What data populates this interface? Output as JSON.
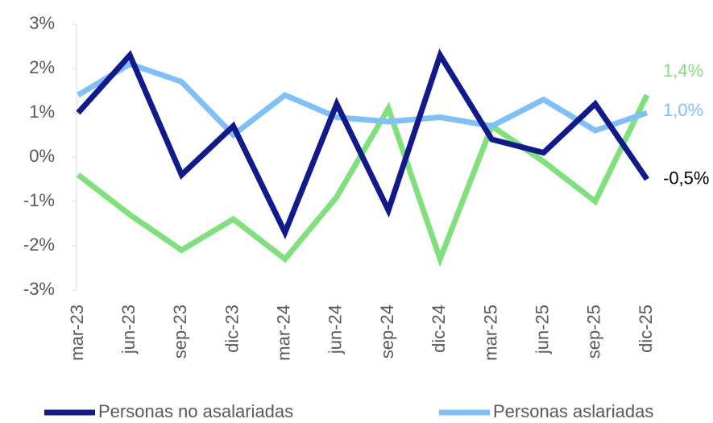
{
  "chart_data": {
    "type": "line",
    "categories": [
      "mar-23",
      "jun-23",
      "sep-23",
      "dic-23",
      "mar-24",
      "jun-24",
      "sep-24",
      "dic-24",
      "mar-25",
      "jun-25",
      "sep-25",
      "dic-25"
    ],
    "series": [
      {
        "name": "Personas no asalariadas",
        "color": "#111a8c",
        "values": [
          1.0,
          2.3,
          -0.4,
          0.7,
          -1.7,
          1.2,
          -1.2,
          2.3,
          0.4,
          0.1,
          1.2,
          -0.5
        ],
        "value_labels": [
          null,
          null,
          null,
          null,
          null,
          null,
          null,
          null,
          null,
          null,
          null,
          "-0,5%"
        ]
      },
      {
        "name": "Personas aslariadas",
        "color": "#80c0fa",
        "values": [
          1.4,
          2.1,
          1.7,
          0.5,
          1.4,
          0.9,
          0.8,
          0.9,
          0.7,
          1.3,
          0.6,
          1.0
        ],
        "value_labels": [
          null,
          null,
          null,
          null,
          null,
          null,
          null,
          null,
          null,
          null,
          null,
          "1,0%"
        ]
      },
      {
        "color": "#80e07c",
        "values": [
          -0.4,
          -1.3,
          -2.1,
          -1.4,
          -2.3,
          -0.9,
          1.1,
          -2.3,
          0.7,
          -0.1,
          -1.0,
          1.4
        ],
        "value_labels": [
          null,
          null,
          null,
          null,
          null,
          null,
          null,
          null,
          null,
          null,
          null,
          "1,4%"
        ]
      }
    ],
    "ylim": [
      -3,
      3
    ],
    "yticks": [
      {
        "value": -3,
        "label": "-3%"
      },
      {
        "value": -2,
        "label": "-2%"
      },
      {
        "value": -1,
        "label": "-1%"
      },
      {
        "value": 0,
        "label": "0%"
      },
      {
        "value": 1,
        "label": "1%"
      },
      {
        "value": 2,
        "label": "2%"
      },
      {
        "value": 3,
        "label": "3%"
      }
    ],
    "legend": "bottom"
  }
}
